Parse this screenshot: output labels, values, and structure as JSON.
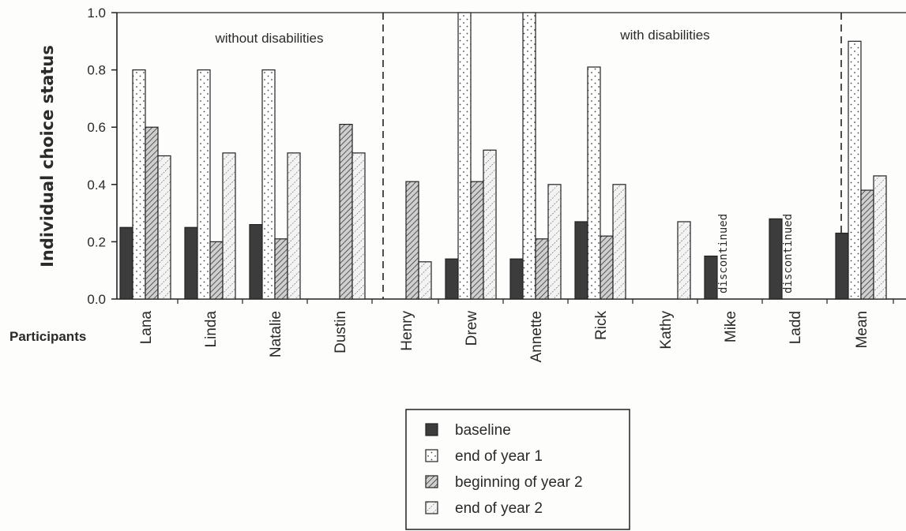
{
  "chart_data": {
    "type": "bar",
    "ylabel": "Individual choice status",
    "xlabel": "Participants",
    "ylim": [
      0,
      1.0
    ],
    "yticks": [
      "0.0",
      "0.2",
      "0.4",
      "0.6",
      "0.8",
      "1.0"
    ],
    "categories": [
      "Lana",
      "Linda",
      "Natalie",
      "Dustin",
      "Henry",
      "Drew",
      "Annette",
      "Rick",
      "Kathy",
      "Mike",
      "Ladd",
      "Mean"
    ],
    "groups": [
      {
        "label": "without disabilities"
      },
      {
        "label": "with disabilities"
      }
    ],
    "series": [
      {
        "name": "baseline",
        "values": [
          0.25,
          0.25,
          0.26,
          null,
          null,
          0.14,
          0.14,
          0.27,
          null,
          0.15,
          0.28,
          0.23
        ]
      },
      {
        "name": "end of year 1",
        "values": [
          0.8,
          0.8,
          0.8,
          null,
          null,
          1.0,
          1.0,
          0.81,
          null,
          null,
          null,
          0.9
        ]
      },
      {
        "name": "beginning of year 2",
        "values": [
          0.6,
          0.2,
          0.21,
          0.61,
          0.41,
          0.41,
          0.21,
          0.22,
          null,
          null,
          null,
          0.38
        ]
      },
      {
        "name": "end of year 2",
        "values": [
          0.5,
          0.51,
          0.51,
          0.51,
          0.13,
          0.52,
          0.4,
          0.4,
          0.27,
          null,
          null,
          0.43
        ]
      }
    ],
    "annotations": [
      {
        "category": "Mike",
        "text": "discontinued"
      },
      {
        "category": "Ladd",
        "text": "discontinued"
      }
    ],
    "colors": {
      "baseline": "#3c3c3c",
      "end of year 1": "#ffffff",
      "beginning of year 2": "#bdbdbd",
      "end of year 2": "#ececec"
    },
    "grid": false,
    "legend_position": "bottom-center"
  }
}
